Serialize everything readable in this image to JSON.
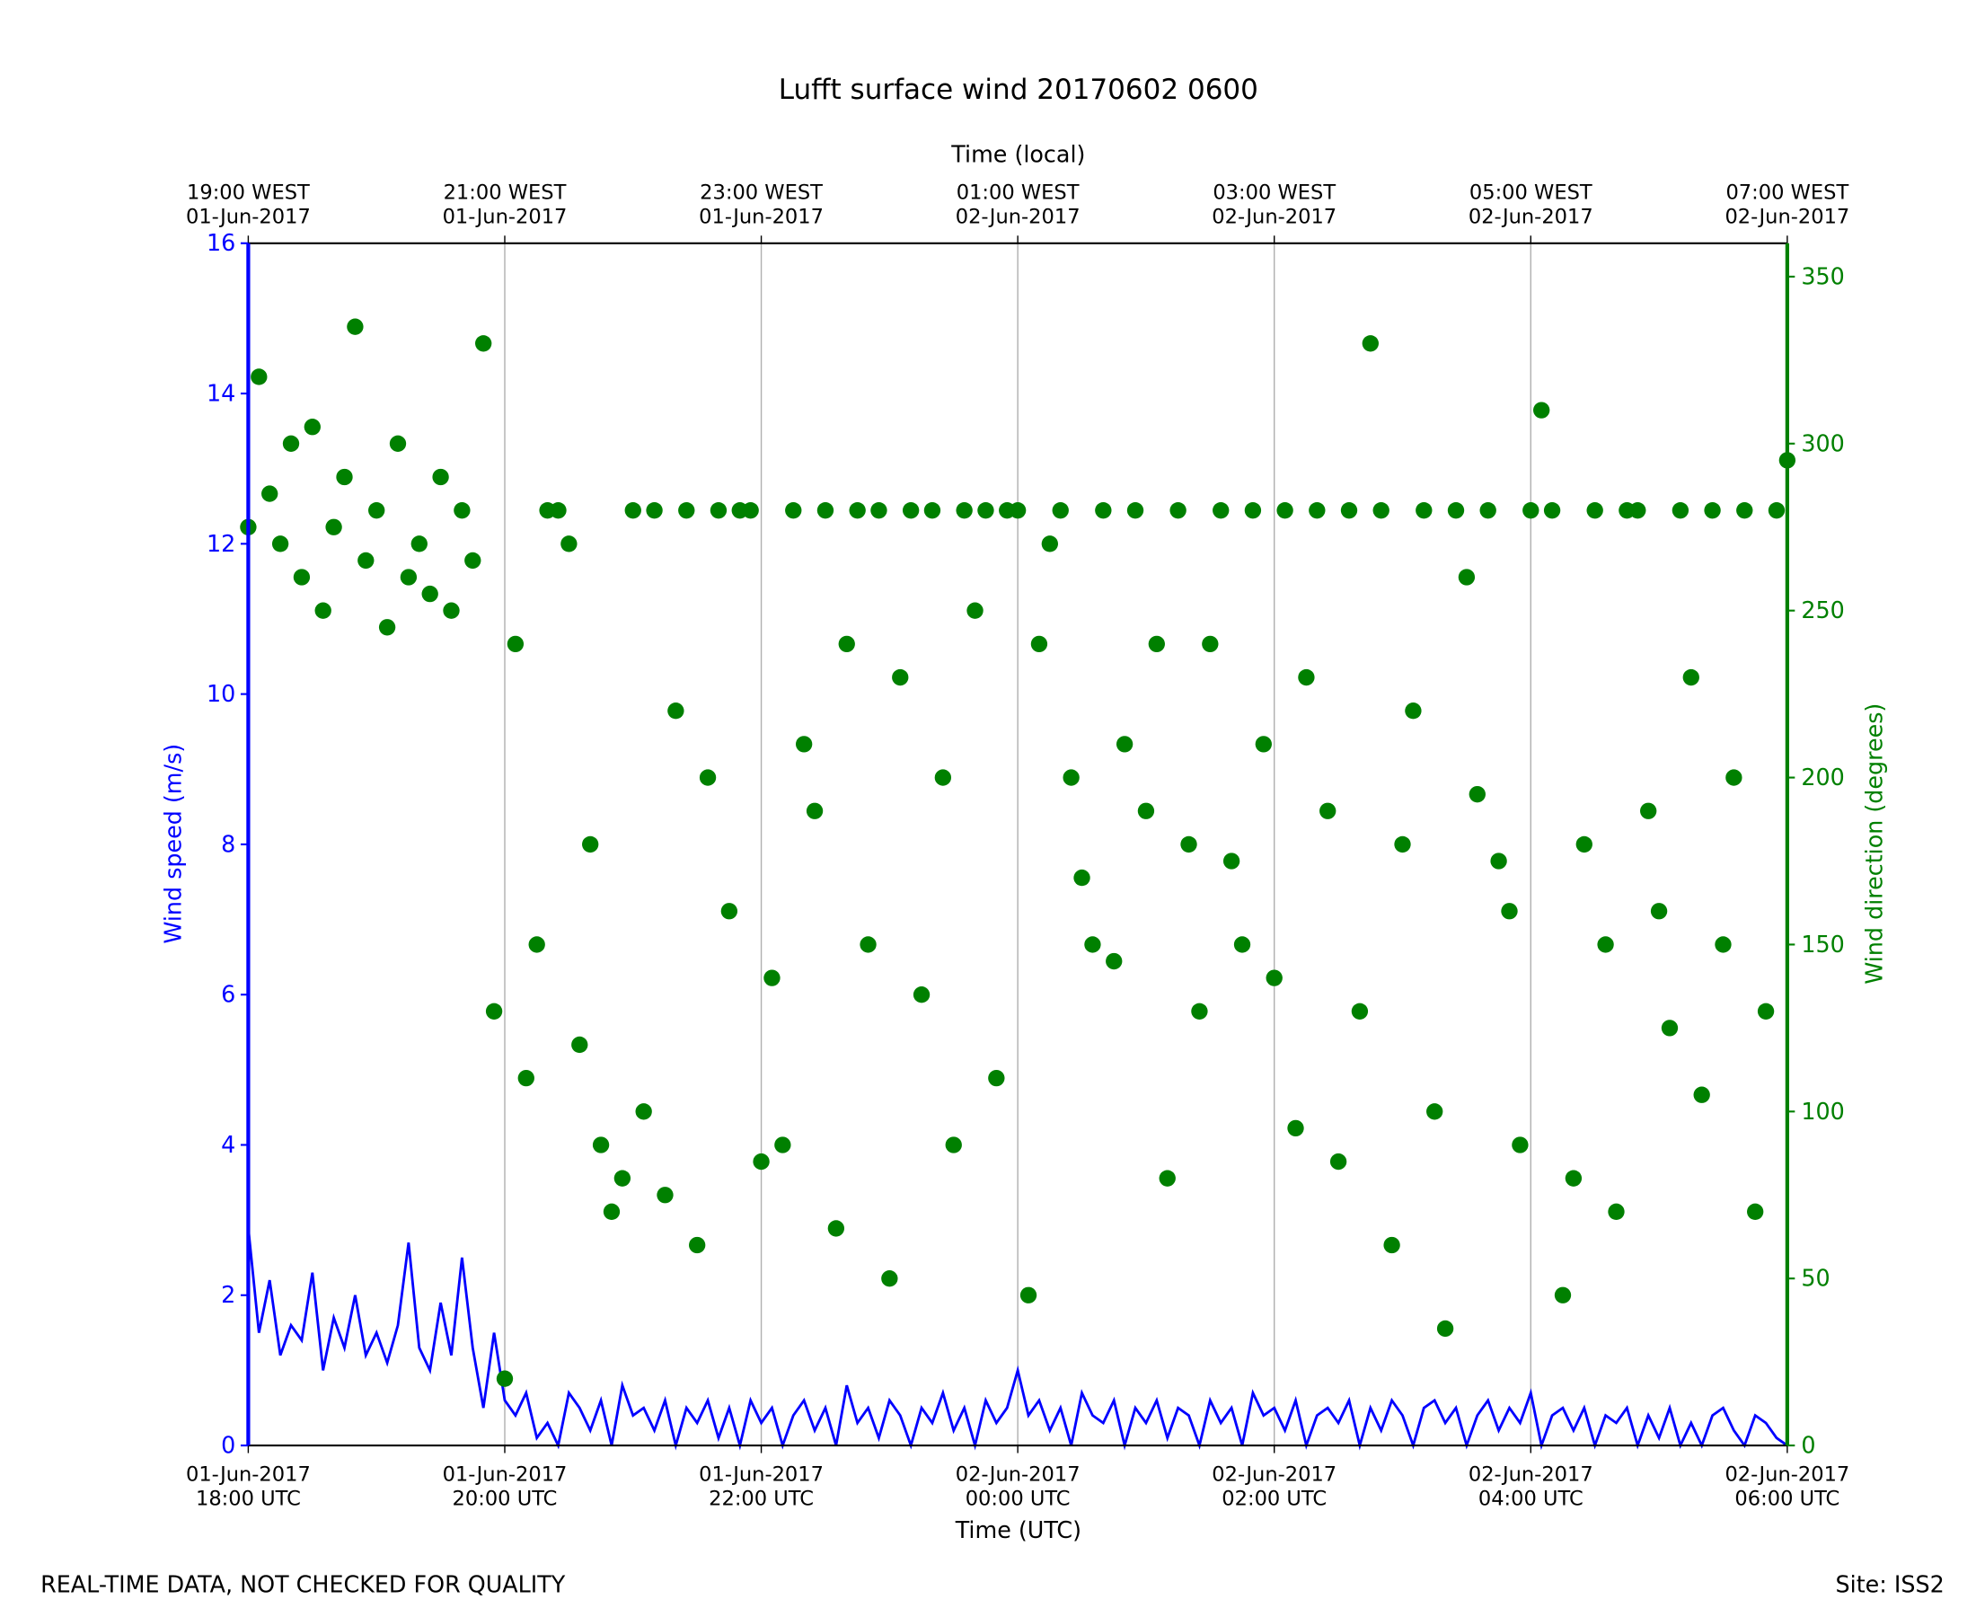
{
  "chart_data": {
    "type": "line",
    "title": "Lufft surface wind 20170602 0600",
    "xlabel": "Time (UTC)",
    "x2label": "Time (local)",
    "ylabel": "Wind speed (m/s)",
    "y2label": "Wind direction (degrees)",
    "footer_left": "REAL-TIME DATA, NOT CHECKED FOR QUALITY",
    "footer_right": "Site: ISS2",
    "grid": true,
    "xlim": [
      "2017-06-01 18:00",
      "2017-06-02 06:00"
    ],
    "xticks": [
      {
        "value": "2017-06-01 18:00",
        "label": "01-Jun-2017\n18:00 UTC"
      },
      {
        "value": "2017-06-01 20:00",
        "label": "01-Jun-2017\n20:00 UTC"
      },
      {
        "value": "2017-06-01 22:00",
        "label": "01-Jun-2017\n22:00 UTC"
      },
      {
        "value": "2017-06-02 00:00",
        "label": "02-Jun-2017\n00:00 UTC"
      },
      {
        "value": "2017-06-02 02:00",
        "label": "02-Jun-2017\n02:00 UTC"
      },
      {
        "value": "2017-06-02 04:00",
        "label": "02-Jun-2017\n04:00 UTC"
      },
      {
        "value": "2017-06-02 06:00",
        "label": "02-Jun-2017\n06:00 UTC"
      }
    ],
    "x2ticks": [
      {
        "value": "2017-06-01 18:00",
        "label": "19:00 WEST\n01-Jun-2017"
      },
      {
        "value": "2017-06-01 20:00",
        "label": "21:00 WEST\n01-Jun-2017"
      },
      {
        "value": "2017-06-01 22:00",
        "label": "23:00 WEST\n01-Jun-2017"
      },
      {
        "value": "2017-06-02 00:00",
        "label": "01:00 WEST\n02-Jun-2017"
      },
      {
        "value": "2017-06-02 02:00",
        "label": "03:00 WEST\n02-Jun-2017"
      },
      {
        "value": "2017-06-02 04:00",
        "label": "05:00 WEST\n02-Jun-2017"
      },
      {
        "value": "2017-06-02 06:00",
        "label": "07:00 WEST\n02-Jun-2017"
      }
    ],
    "ylim": [
      0,
      16
    ],
    "yticks": [
      0,
      2,
      4,
      6,
      8,
      10,
      12,
      14,
      16
    ],
    "ycolor": "#0000ff",
    "y2lim": [
      0,
      360
    ],
    "y2ticks": [
      0,
      50,
      100,
      150,
      200,
      250,
      300,
      350
    ],
    "y2color": "#008000",
    "x": [
      "2017-06-01 18:00",
      "2017-06-01 18:05",
      "2017-06-01 18:10",
      "2017-06-01 18:15",
      "2017-06-01 18:20",
      "2017-06-01 18:25",
      "2017-06-01 18:30",
      "2017-06-01 18:35",
      "2017-06-01 18:40",
      "2017-06-01 18:45",
      "2017-06-01 18:50",
      "2017-06-01 18:55",
      "2017-06-01 19:00",
      "2017-06-01 19:05",
      "2017-06-01 19:10",
      "2017-06-01 19:15",
      "2017-06-01 19:20",
      "2017-06-01 19:25",
      "2017-06-01 19:30",
      "2017-06-01 19:35",
      "2017-06-01 19:40",
      "2017-06-01 19:45",
      "2017-06-01 19:50",
      "2017-06-01 19:55",
      "2017-06-01 20:00",
      "2017-06-01 20:05",
      "2017-06-01 20:10",
      "2017-06-01 20:15",
      "2017-06-01 20:20",
      "2017-06-01 20:25",
      "2017-06-01 20:30",
      "2017-06-01 20:35",
      "2017-06-01 20:40",
      "2017-06-01 20:45",
      "2017-06-01 20:50",
      "2017-06-01 20:55",
      "2017-06-01 21:00",
      "2017-06-01 21:05",
      "2017-06-01 21:10",
      "2017-06-01 21:15",
      "2017-06-01 21:20",
      "2017-06-01 21:25",
      "2017-06-01 21:30",
      "2017-06-01 21:35",
      "2017-06-01 21:40",
      "2017-06-01 21:45",
      "2017-06-01 21:50",
      "2017-06-01 21:55",
      "2017-06-01 22:00",
      "2017-06-01 22:05",
      "2017-06-01 22:10",
      "2017-06-01 22:15",
      "2017-06-01 22:20",
      "2017-06-01 22:25",
      "2017-06-01 22:30",
      "2017-06-01 22:35",
      "2017-06-01 22:40",
      "2017-06-01 22:45",
      "2017-06-01 22:50",
      "2017-06-01 22:55",
      "2017-06-01 23:00",
      "2017-06-01 23:05",
      "2017-06-01 23:10",
      "2017-06-01 23:15",
      "2017-06-01 23:20",
      "2017-06-01 23:25",
      "2017-06-01 23:30",
      "2017-06-01 23:35",
      "2017-06-01 23:40",
      "2017-06-01 23:45",
      "2017-06-01 23:50",
      "2017-06-01 23:55",
      "2017-06-02 00:00",
      "2017-06-02 00:05",
      "2017-06-02 00:10",
      "2017-06-02 00:15",
      "2017-06-02 00:20",
      "2017-06-02 00:25",
      "2017-06-02 00:30",
      "2017-06-02 00:35",
      "2017-06-02 00:40",
      "2017-06-02 00:45",
      "2017-06-02 00:50",
      "2017-06-02 00:55",
      "2017-06-02 01:00",
      "2017-06-02 01:05",
      "2017-06-02 01:10",
      "2017-06-02 01:15",
      "2017-06-02 01:20",
      "2017-06-02 01:25",
      "2017-06-02 01:30",
      "2017-06-02 01:35",
      "2017-06-02 01:40",
      "2017-06-02 01:45",
      "2017-06-02 01:50",
      "2017-06-02 01:55",
      "2017-06-02 02:00",
      "2017-06-02 02:05",
      "2017-06-02 02:10",
      "2017-06-02 02:15",
      "2017-06-02 02:20",
      "2017-06-02 02:25",
      "2017-06-02 02:30",
      "2017-06-02 02:35",
      "2017-06-02 02:40",
      "2017-06-02 02:45",
      "2017-06-02 02:50",
      "2017-06-02 02:55",
      "2017-06-02 03:00",
      "2017-06-02 03:05",
      "2017-06-02 03:10",
      "2017-06-02 03:15",
      "2017-06-02 03:20",
      "2017-06-02 03:25",
      "2017-06-02 03:30",
      "2017-06-02 03:35",
      "2017-06-02 03:40",
      "2017-06-02 03:45",
      "2017-06-02 03:50",
      "2017-06-02 03:55",
      "2017-06-02 04:00",
      "2017-06-02 04:05",
      "2017-06-02 04:10",
      "2017-06-02 04:15",
      "2017-06-02 04:20",
      "2017-06-02 04:25",
      "2017-06-02 04:30",
      "2017-06-02 04:35",
      "2017-06-02 04:40",
      "2017-06-02 04:45",
      "2017-06-02 04:50",
      "2017-06-02 04:55",
      "2017-06-02 05:00",
      "2017-06-02 05:05",
      "2017-06-02 05:10",
      "2017-06-02 05:15",
      "2017-06-02 05:20",
      "2017-06-02 05:25",
      "2017-06-02 05:30",
      "2017-06-02 05:35",
      "2017-06-02 05:40",
      "2017-06-02 05:45",
      "2017-06-02 05:50",
      "2017-06-02 05:55",
      "2017-06-02 06:00"
    ],
    "series": [
      {
        "type": "line",
        "color": "#0000ff",
        "axis": "y",
        "values": [
          2.9,
          1.5,
          2.2,
          1.2,
          1.6,
          1.4,
          2.3,
          1.0,
          1.7,
          1.3,
          2.0,
          1.2,
          1.5,
          1.1,
          1.6,
          2.7,
          1.3,
          1.0,
          1.9,
          1.2,
          2.5,
          1.3,
          0.5,
          1.5,
          0.6,
          0.4,
          0.7,
          0.1,
          0.3,
          0.0,
          0.7,
          0.5,
          0.2,
          0.6,
          0.0,
          0.8,
          0.4,
          0.5,
          0.2,
          0.6,
          0.0,
          0.5,
          0.3,
          0.6,
          0.1,
          0.5,
          0.0,
          0.6,
          0.3,
          0.5,
          0.0,
          0.4,
          0.6,
          0.2,
          0.5,
          0.0,
          0.8,
          0.3,
          0.5,
          0.1,
          0.6,
          0.4,
          0.0,
          0.5,
          0.3,
          0.7,
          0.2,
          0.5,
          0.0,
          0.6,
          0.3,
          0.5,
          1.0,
          0.4,
          0.6,
          0.2,
          0.5,
          0.0,
          0.7,
          0.4,
          0.3,
          0.6,
          0.0,
          0.5,
          0.3,
          0.6,
          0.1,
          0.5,
          0.4,
          0.0,
          0.6,
          0.3,
          0.5,
          0.0,
          0.7,
          0.4,
          0.5,
          0.2,
          0.6,
          0.0,
          0.4,
          0.5,
          0.3,
          0.6,
          0.0,
          0.5,
          0.2,
          0.6,
          0.4,
          0.0,
          0.5,
          0.6,
          0.3,
          0.5,
          0.0,
          0.4,
          0.6,
          0.2,
          0.5,
          0.3,
          0.7,
          0.0,
          0.4,
          0.5,
          0.2,
          0.5,
          0.0,
          0.4,
          0.3,
          0.5,
          0.0,
          0.4,
          0.1,
          0.5,
          0.0,
          0.3,
          0.0,
          0.4,
          0.5,
          0.2,
          0.0,
          0.4,
          0.3,
          0.1,
          0.0
        ]
      },
      {
        "type": "scatter",
        "color": "#008000",
        "axis": "y2",
        "values": [
          275,
          320,
          285,
          270,
          300,
          260,
          305,
          250,
          275,
          290,
          335,
          265,
          280,
          245,
          300,
          260,
          270,
          255,
          290,
          250,
          280,
          265,
          330,
          130,
          20,
          240,
          110,
          150,
          280,
          280,
          270,
          120,
          180,
          90,
          70,
          80,
          280,
          100,
          280,
          75,
          220,
          280,
          60,
          200,
          280,
          160,
          280,
          280,
          85,
          140,
          90,
          280,
          210,
          190,
          280,
          65,
          240,
          280,
          150,
          280,
          50,
          230,
          280,
          135,
          280,
          200,
          90,
          280,
          250,
          280,
          110,
          280,
          280,
          45,
          240,
          270,
          280,
          200,
          170,
          150,
          280,
          145,
          210,
          280,
          190,
          240,
          80,
          280,
          180,
          130,
          240,
          280,
          175,
          150,
          280,
          210,
          140,
          280,
          95,
          230,
          280,
          190,
          85,
          280,
          130,
          330,
          280,
          60,
          180,
          220,
          280,
          100,
          35,
          280,
          260,
          195,
          280,
          175,
          160,
          90,
          280,
          310,
          280,
          45,
          80,
          180,
          280,
          150,
          70,
          280,
          280,
          190,
          160,
          125,
          280,
          230,
          105,
          280,
          150,
          200,
          280,
          70,
          130,
          280,
          295
        ]
      }
    ]
  }
}
